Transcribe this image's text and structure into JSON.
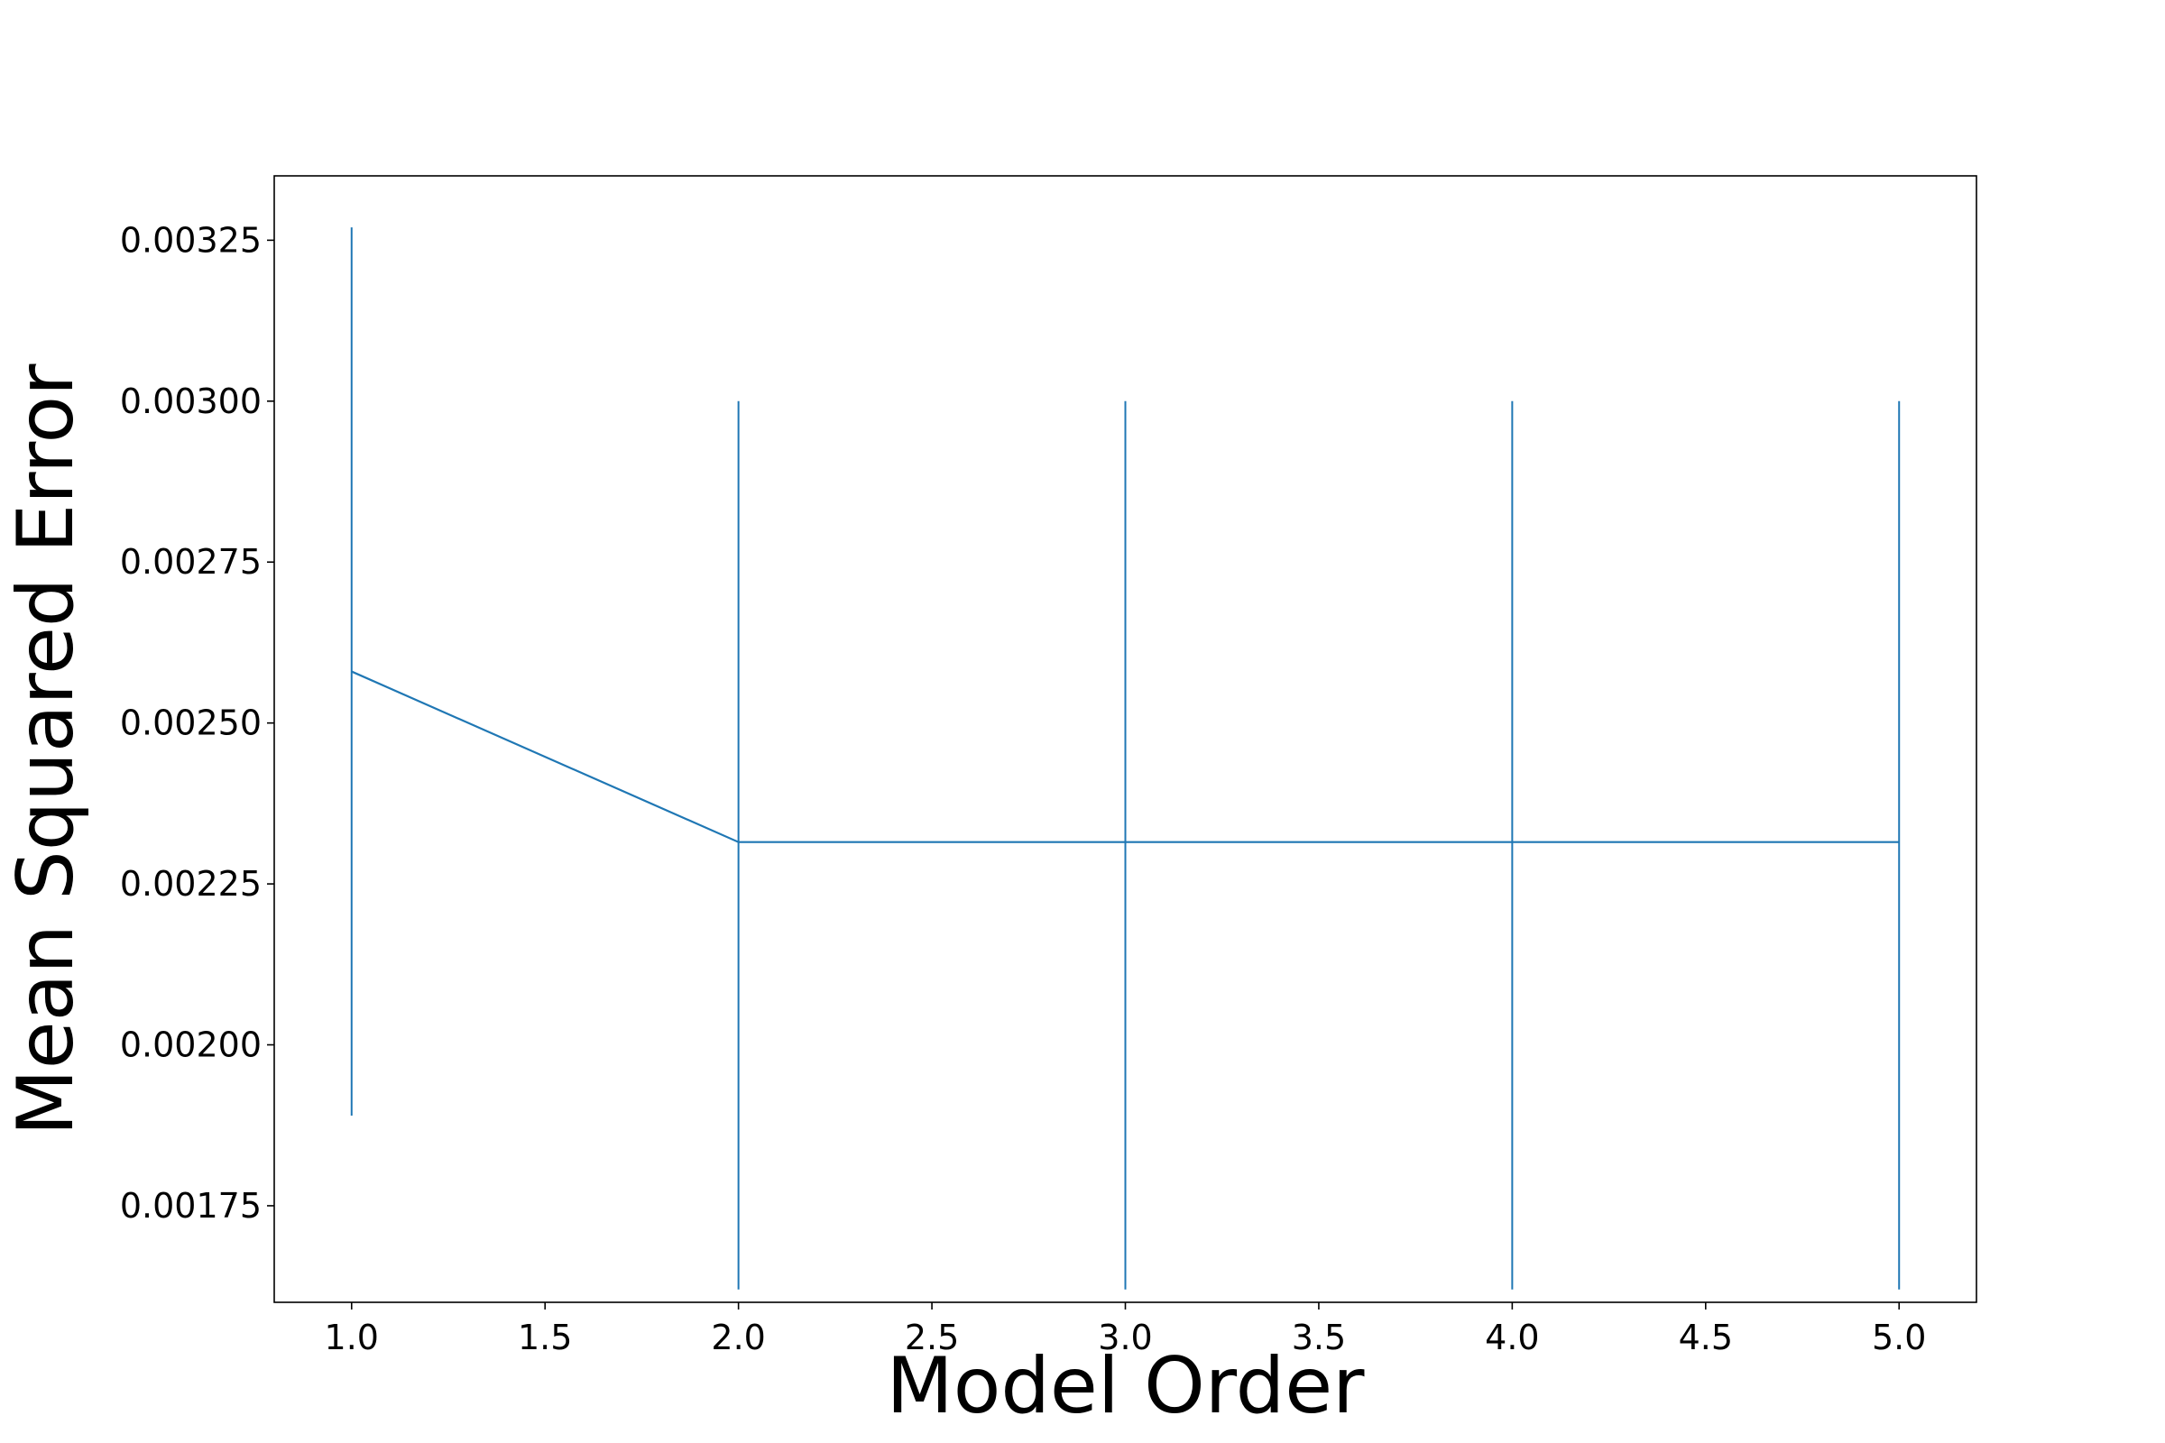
{
  "chart_data": {
    "type": "line",
    "title": "",
    "xlabel": "Model Order",
    "ylabel": "Mean Squared Error",
    "xlim": [
      0.8,
      5.2
    ],
    "ylim": [
      0.0016,
      0.00335
    ],
    "x_ticks": [
      1.0,
      1.5,
      2.0,
      2.5,
      3.0,
      3.5,
      4.0,
      4.5,
      5.0
    ],
    "x_tick_labels": [
      "1.0",
      "1.5",
      "2.0",
      "2.5",
      "3.0",
      "3.5",
      "4.0",
      "4.5",
      "5.0"
    ],
    "y_ticks": [
      0.00175,
      0.002,
      0.00225,
      0.0025,
      0.00275,
      0.003,
      0.00325
    ],
    "y_tick_labels": [
      "0.00175",
      "0.00200",
      "0.00225",
      "0.00250",
      "0.00275",
      "0.00300",
      "0.00325"
    ],
    "grid": false,
    "series": [
      {
        "x": [
          1,
          2,
          3,
          4,
          5
        ],
        "y": [
          0.00258,
          0.002315,
          0.002315,
          0.002315,
          0.002315
        ],
        "yerr_low": [
          0.00189,
          0.00162,
          0.00162,
          0.00162,
          0.00162
        ],
        "yerr_high": [
          0.00327,
          0.003,
          0.003,
          0.003,
          0.003
        ],
        "color": "#1f77b4"
      }
    ]
  }
}
